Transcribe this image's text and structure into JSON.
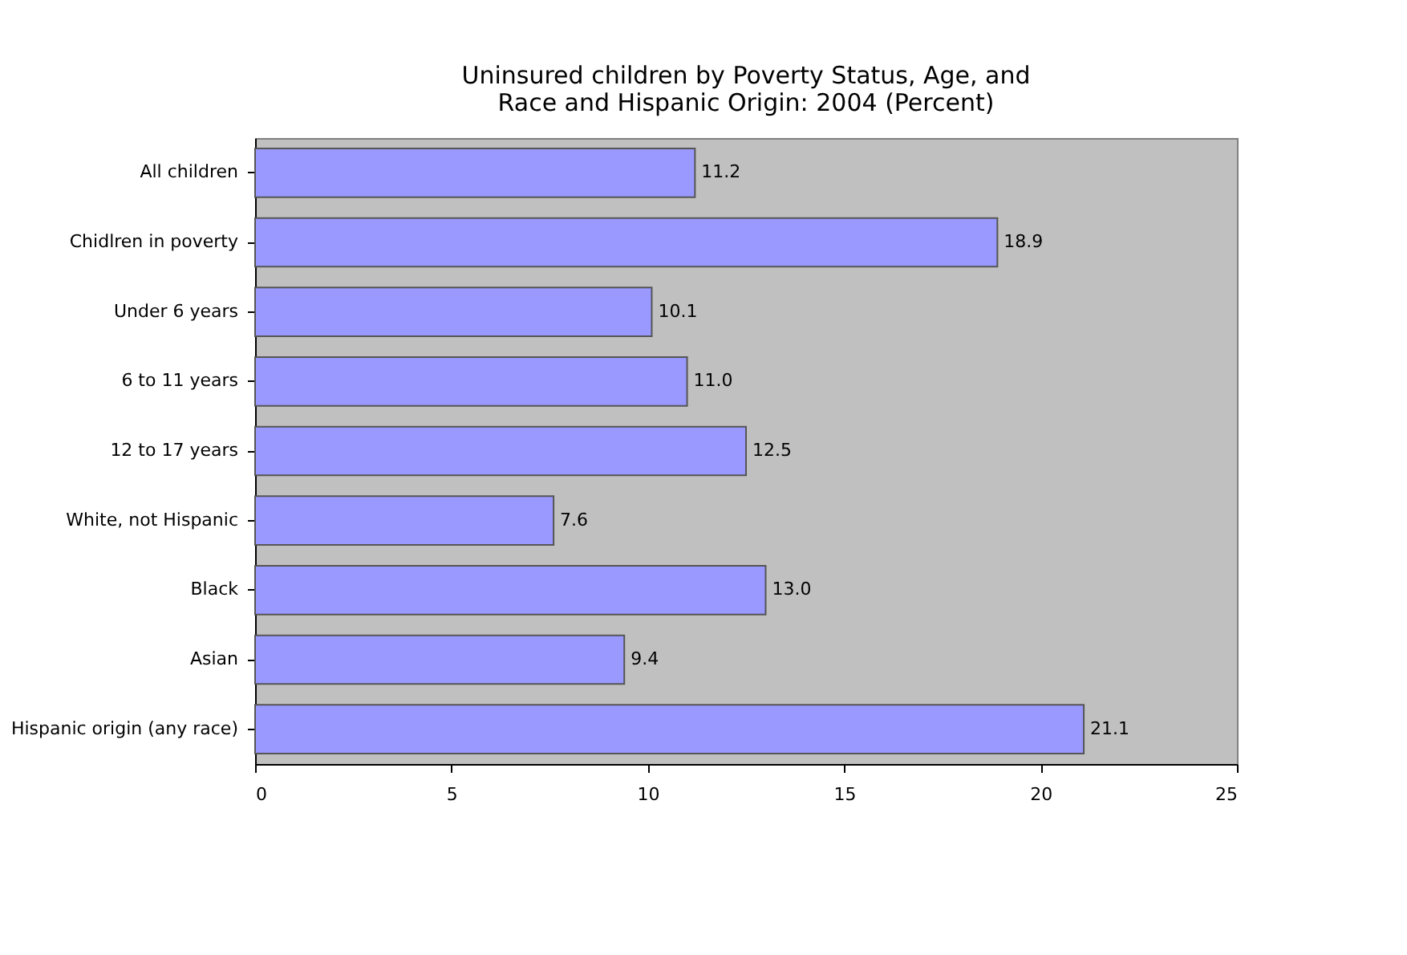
{
  "chart_data": {
    "type": "bar",
    "orientation": "horizontal",
    "title": [
      "Uninsured children by Poverty Status, Age, and",
      "Race and Hispanic Origin: 2004 (Percent)"
    ],
    "categories": [
      "All children",
      "Chidlren in poverty",
      "Under 6 years",
      "6 to 11 years",
      "12 to 17 years",
      "White, not Hispanic",
      "Black",
      "Asian",
      "Hispanic origin (any race)"
    ],
    "values": [
      11.2,
      18.9,
      10.1,
      11.0,
      12.5,
      7.6,
      13.0,
      9.4,
      21.1
    ],
    "color": "#9999ff",
    "xlim": [
      0,
      25
    ],
    "xticks": [
      0,
      5,
      10,
      15,
      20,
      25
    ],
    "value_labels": [
      "11.2",
      "18.9",
      "10.1",
      "11.0",
      "12.5",
      "7.6",
      "13.0",
      "9.4",
      "21.1"
    ],
    "grid": false
  }
}
